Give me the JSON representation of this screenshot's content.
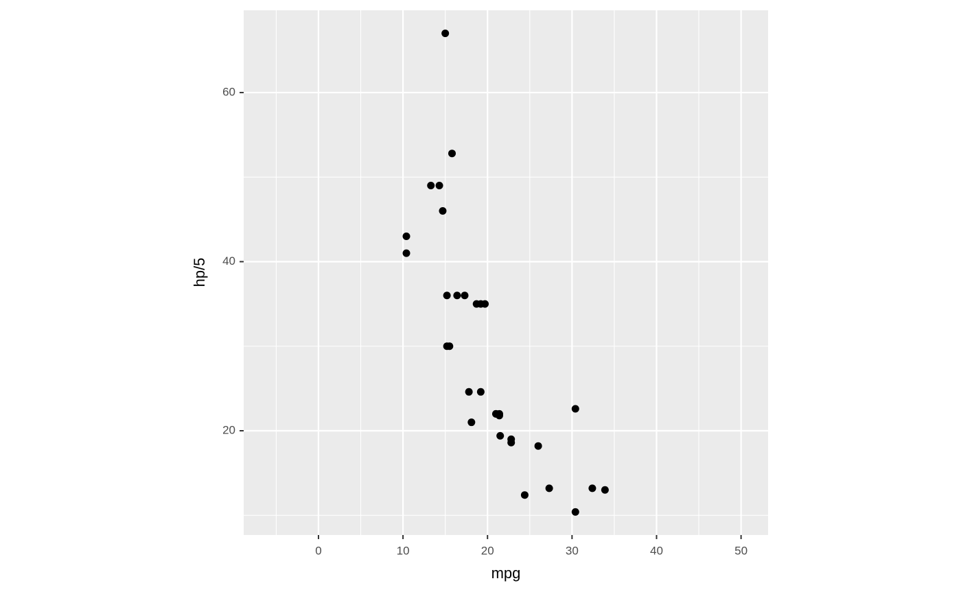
{
  "chart_data": {
    "type": "scatter",
    "x_label": "mpg",
    "y_label": "hp/5",
    "x": [
      21,
      21,
      22.8,
      21.4,
      18.7,
      18.1,
      14.3,
      24.4,
      22.8,
      19.2,
      17.8,
      16.4,
      17.3,
      15.2,
      10.4,
      10.4,
      14.7,
      32.4,
      30.4,
      33.9,
      21.5,
      15.5,
      15.2,
      13.3,
      19.2,
      27.3,
      26,
      30.4,
      15.8,
      19.7,
      15,
      21.4
    ],
    "values": [
      22,
      22,
      18.6,
      22,
      35,
      21,
      49,
      12.4,
      19,
      24.6,
      24.6,
      36,
      36,
      36,
      41,
      43,
      46,
      13.2,
      10.4,
      13,
      19.4,
      30,
      30,
      49,
      35,
      13.2,
      18.2,
      22.6,
      52.8,
      35,
      67,
      21.8
    ],
    "color": "#000000",
    "xlim": [
      -8.85,
      53.2
    ],
    "xticks": [
      0,
      10,
      20,
      30,
      40,
      50
    ],
    "ylim": [
      7.67,
      69.73
    ],
    "yticks": [
      20,
      40,
      60
    ],
    "grid": true
  }
}
